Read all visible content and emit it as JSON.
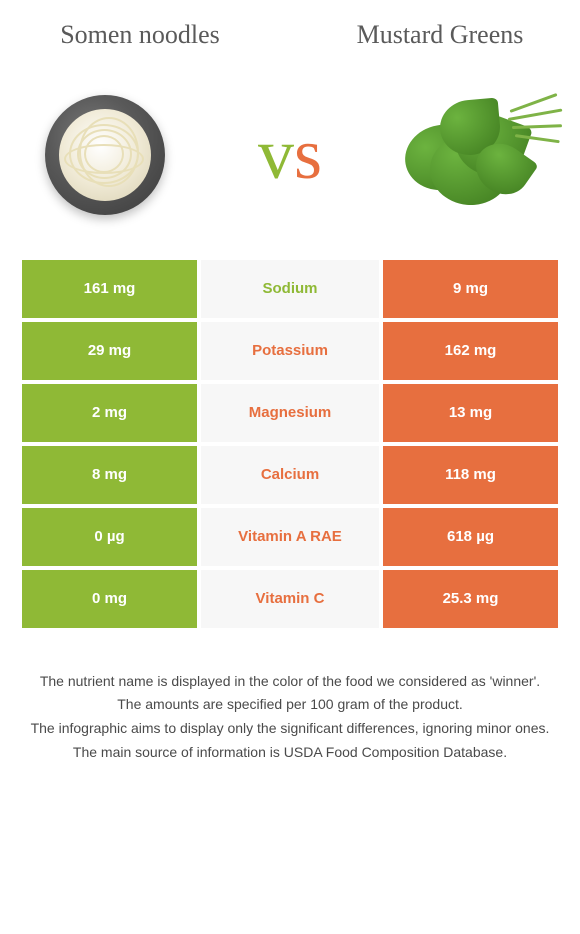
{
  "header": {
    "left_title": "Somen noodles",
    "right_title": "Mustard Greens",
    "vs_v": "v",
    "vs_s": "s"
  },
  "colors": {
    "green": "#8fb936",
    "orange": "#e76f3f",
    "mid_bg": "#f7f7f7"
  },
  "rows": [
    {
      "left": "161 mg",
      "mid": "Sodium",
      "right": "9 mg",
      "winner": "left"
    },
    {
      "left": "29 mg",
      "mid": "Potassium",
      "right": "162 mg",
      "winner": "right"
    },
    {
      "left": "2 mg",
      "mid": "Magnesium",
      "right": "13 mg",
      "winner": "right"
    },
    {
      "left": "8 mg",
      "mid": "Calcium",
      "right": "118 mg",
      "winner": "right"
    },
    {
      "left": "0 µg",
      "mid": "Vitamin A RAE",
      "right": "618 µg",
      "winner": "right"
    },
    {
      "left": "0 mg",
      "mid": "Vitamin C",
      "right": "25.3 mg",
      "winner": "right"
    }
  ],
  "footer": {
    "line1": "The nutrient name is displayed in the color of the food we considered as 'winner'.",
    "line2": "The amounts are specified per 100 gram of the product.",
    "line3": "The infographic aims to display only the significant differences, ignoring minor ones.",
    "line4": "The main source of information is USDA Food Composition Database."
  }
}
